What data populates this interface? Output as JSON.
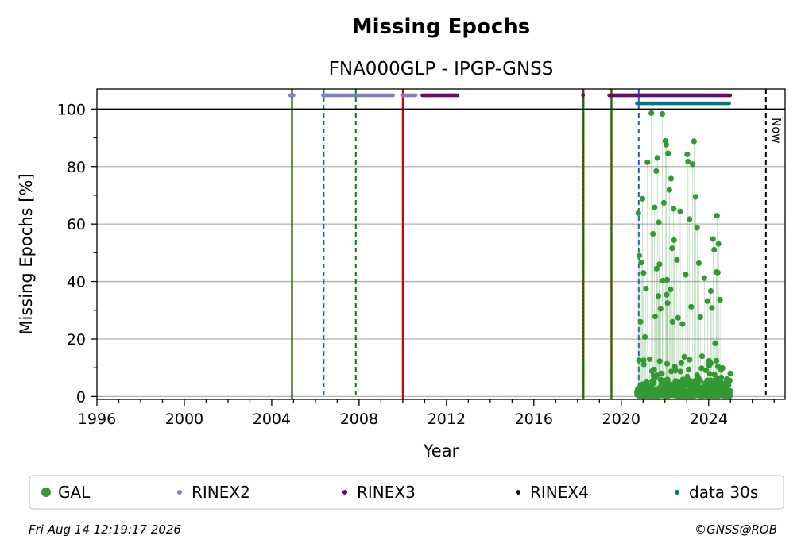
{
  "chart_data": {
    "type": "scatter",
    "title": "Missing Epochs",
    "subtitle": "FNA000GLP - IPGP-GNSS",
    "xlabel": "Year",
    "ylabel": "Missing Epochs [%]",
    "xlim": [
      1996,
      2027.5
    ],
    "ylim": [
      -1,
      107
    ],
    "xticks": [
      1996,
      2000,
      2004,
      2008,
      2012,
      2016,
      2020,
      2024
    ],
    "yticks": [
      0,
      20,
      40,
      60,
      80,
      100
    ],
    "grid": true,
    "reference_line_y": 100,
    "now_label": "Now",
    "now_year": 2026.62,
    "legend_position": "bottom",
    "vertical_lines": [
      {
        "x": 2004.93,
        "colors": [
          "#008000",
          "#d40000"
        ],
        "style": "mixed"
      },
      {
        "x": 2006.38,
        "colors": [
          "#1f5fbf"
        ],
        "style": "dashed"
      },
      {
        "x": 2007.85,
        "colors": [
          "#008000"
        ],
        "style": "dashed"
      },
      {
        "x": 2010.0,
        "colors": [
          "#d40000"
        ],
        "style": "solid"
      },
      {
        "x": 2018.27,
        "colors": [
          "#008000",
          "#d40000"
        ],
        "style": "mixed"
      },
      {
        "x": 2019.55,
        "colors": [
          "#008000",
          "#d40000"
        ],
        "style": "mixed"
      },
      {
        "x": 2020.8,
        "colors": [
          "#1f5fbf"
        ],
        "style": "dashed"
      }
    ],
    "availability": [
      {
        "name": "RINEX2",
        "color": "#8080c0",
        "y": 104.8,
        "ranges": [
          [
            2004.85,
            2005.05
          ],
          [
            2006.35,
            2009.6
          ],
          [
            2010.0,
            2010.65
          ]
        ]
      },
      {
        "name": "RINEX3",
        "color": "#6a0a6a",
        "y": 104.8,
        "ranges": [
          [
            2010.9,
            2012.55
          ],
          [
            2018.25,
            2018.3
          ],
          [
            2019.45,
            2025.0
          ]
        ]
      },
      {
        "name": "data 30s",
        "color": "#007a80",
        "y": 102.0,
        "ranges": [
          [
            2020.72,
            2025.0
          ]
        ]
      }
    ],
    "gal_range": [
      2020.72,
      2025.0
    ],
    "gal_spikes": [
      [
        2020.78,
        63.8
      ],
      [
        2020.82,
        49.0
      ],
      [
        2020.88,
        26.0
      ],
      [
        2020.92,
        46.6
      ],
      [
        2020.97,
        68.8
      ],
      [
        2021.02,
        43.0
      ],
      [
        2021.08,
        20.7
      ],
      [
        2021.13,
        37.5
      ],
      [
        2021.2,
        81.5
      ],
      [
        2021.3,
        13.0
      ],
      [
        2021.38,
        98.6
      ],
      [
        2021.45,
        56.6
      ],
      [
        2021.52,
        65.8
      ],
      [
        2021.6,
        78.4
      ],
      [
        2021.65,
        83.0
      ],
      [
        2021.72,
        60.6
      ],
      [
        2021.8,
        30.5
      ],
      [
        2021.88,
        98.3
      ],
      [
        2021.95,
        67.4
      ],
      [
        2022.02,
        88.9
      ],
      [
        2022.06,
        87.6
      ],
      [
        2022.1,
        40.6
      ],
      [
        2022.15,
        84.6
      ],
      [
        2022.2,
        71.9
      ],
      [
        2022.28,
        75.8
      ],
      [
        2022.33,
        51.6
      ],
      [
        2022.4,
        65.3
      ],
      [
        2022.48,
        9.2
      ],
      [
        2022.55,
        47.5
      ],
      [
        2022.6,
        27.4
      ],
      [
        2022.7,
        64.4
      ],
      [
        2022.8,
        25.2
      ],
      [
        2022.88,
        13.8
      ],
      [
        2022.95,
        42.4
      ],
      [
        2023.02,
        84.2
      ],
      [
        2023.06,
        81.7
      ],
      [
        2023.12,
        61.7
      ],
      [
        2023.2,
        31.2
      ],
      [
        2023.27,
        80.8
      ],
      [
        2023.33,
        88.8
      ],
      [
        2023.4,
        69.5
      ],
      [
        2023.47,
        58.7
      ],
      [
        2023.55,
        46.4
      ],
      [
        2023.62,
        27.6
      ],
      [
        2023.7,
        14.0
      ],
      [
        2023.8,
        41.2
      ],
      [
        2023.88,
        9.1
      ],
      [
        2023.95,
        33.2
      ],
      [
        2024.02,
        12.4
      ],
      [
        2024.1,
        36.7
      ],
      [
        2024.15,
        30.8
      ],
      [
        2024.2,
        54.8
      ],
      [
        2024.25,
        51.1
      ],
      [
        2024.3,
        18.5
      ],
      [
        2024.35,
        43.3
      ],
      [
        2024.38,
        62.9
      ],
      [
        2024.42,
        43.1
      ],
      [
        2024.45,
        53.1
      ],
      [
        2024.52,
        33.7
      ],
      [
        2024.58,
        6.6
      ],
      [
        2021.9,
        40.3
      ],
      [
        2022.08,
        35.4
      ],
      [
        2022.35,
        26.0
      ],
      [
        2021.55,
        27.8
      ],
      [
        2021.7,
        35.0
      ],
      [
        2022.25,
        37.2
      ],
      [
        2022.12,
        32.5
      ],
      [
        2021.75,
        46.0
      ],
      [
        2022.42,
        54.4
      ],
      [
        2021.62,
        44.5
      ]
    ],
    "legend": [
      {
        "name": "GAL",
        "color": "#339933",
        "size": 5
      },
      {
        "name": "RINEX2",
        "color": "#8080c0",
        "size": 3
      },
      {
        "name": "RINEX3",
        "color": "#6a0a6a",
        "size": 3
      },
      {
        "name": "RINEX4",
        "color": "#1a0020",
        "size": 3
      },
      {
        "name": "data 30s",
        "color": "#007a80",
        "size": 3
      }
    ]
  },
  "footer": {
    "timestamp": "Fri Aug 14 12:19:17 2026",
    "credit": "©GNSS@ROB"
  }
}
